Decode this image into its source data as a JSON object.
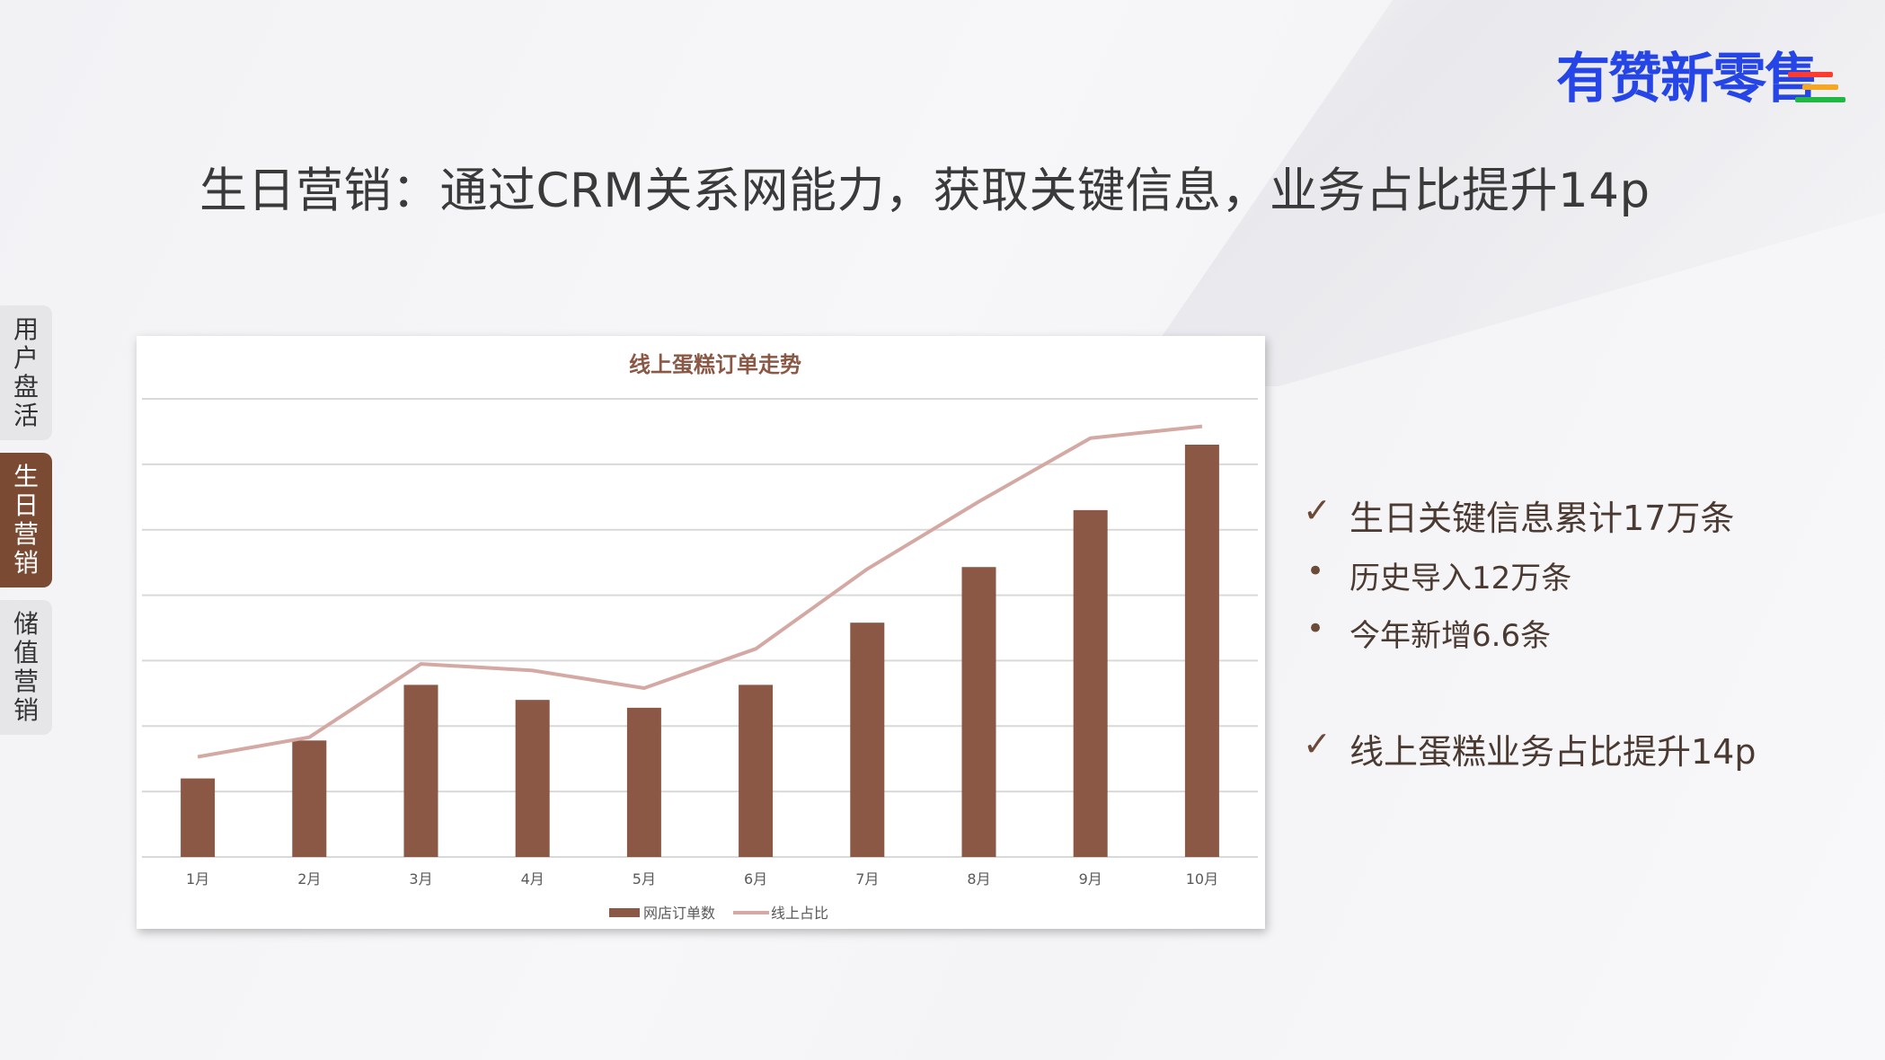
{
  "brand": {
    "logo_text": "有赞新零售",
    "logo_color": "#2545e6",
    "bar_colors": [
      "#ff3b30",
      "#f5a623",
      "#1fb842"
    ]
  },
  "slide": {
    "title": "生日营销：通过CRM关系网能力，获取关键信息，业务占比提升14p"
  },
  "sidebar": {
    "items": [
      {
        "label": "用户盘活",
        "chars": [
          "用",
          "户",
          "盘",
          "活"
        ],
        "active": false
      },
      {
        "label": "生日营销",
        "chars": [
          "生",
          "日",
          "营",
          "销"
        ],
        "active": true
      },
      {
        "label": "储值营销",
        "chars": [
          "储",
          "值",
          "营",
          "销"
        ],
        "active": false
      }
    ]
  },
  "bullets": {
    "items": [
      {
        "marker": "✓",
        "text": "生日关键信息累计17万条",
        "level": 1
      },
      {
        "marker": "•",
        "text": "历史导入12万条",
        "level": 2
      },
      {
        "marker": "•",
        "text": "今年新增6.6条",
        "level": 2
      },
      {
        "marker": "✓",
        "text": "线上蛋糕业务占比提升14p",
        "level": 1
      }
    ]
  },
  "colors": {
    "bar": "#8b5845",
    "line": "#d4a9a4",
    "grid": "#d9d9d9",
    "title": "#8b5845",
    "active_tab": "#7b4a33"
  },
  "chart_data": {
    "type": "bar",
    "title": "线上蛋糕订单走势",
    "categories": [
      "1月",
      "2月",
      "3月",
      "4月",
      "5月",
      "6月",
      "7月",
      "8月",
      "9月",
      "10月"
    ],
    "ylim": [
      0,
      7
    ],
    "grid": true,
    "legend_position": "bottom",
    "series": [
      {
        "name": "网店订单数",
        "kind": "bar",
        "values": [
          1.2,
          1.78,
          2.63,
          2.4,
          2.28,
          2.63,
          3.58,
          4.43,
          5.3,
          6.3
        ]
      },
      {
        "name": "线上占比",
        "kind": "line",
        "values": [
          1.53,
          1.83,
          2.95,
          2.85,
          2.58,
          3.18,
          4.4,
          5.43,
          6.4,
          6.58
        ]
      }
    ]
  }
}
